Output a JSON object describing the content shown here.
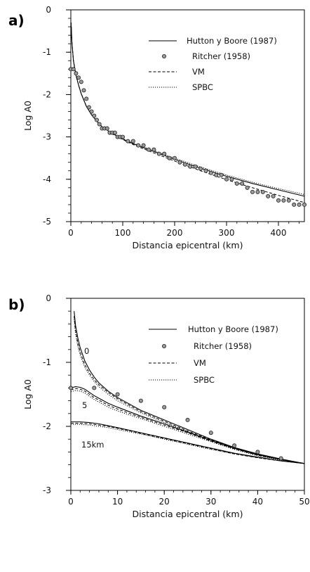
{
  "chart_data": [
    {
      "panel_label": "a)",
      "type": "line",
      "xlabel": "Distancia epicentral (km)",
      "ylabel": "Log A0",
      "xlim": [
        0,
        450
      ],
      "ylim": [
        -5,
        0
      ],
      "xticks": [
        "0",
        "100",
        "200",
        "300",
        "400"
      ],
      "yticks": [
        "0",
        "-1",
        "-2",
        "-3",
        "-4",
        "-5"
      ],
      "legend": {
        "placement": "top-right",
        "entries": [
          "Hutton y Boore (1987)",
          "Ritcher (1958)",
          "VM",
          "SPBC"
        ]
      },
      "series": [
        {
          "name": "Hutton y Boore (1987)",
          "style": "solid",
          "x": [
            0.5,
            2,
            5,
            10,
            15,
            20,
            30,
            40,
            50,
            60,
            80,
            100,
            120,
            150,
            200,
            250,
            300,
            350,
            400,
            450
          ],
          "y": [
            -0.3,
            -0.75,
            -1.2,
            -1.55,
            -1.78,
            -1.98,
            -2.28,
            -2.48,
            -2.63,
            -2.76,
            -2.92,
            -3.05,
            -3.16,
            -3.3,
            -3.53,
            -3.74,
            -3.93,
            -4.1,
            -4.25,
            -4.4
          ]
        },
        {
          "name": "VM",
          "style": "dashed",
          "x": [
            0.5,
            2,
            5,
            10,
            15,
            20,
            30,
            40,
            50,
            60,
            80,
            100,
            120,
            150,
            200,
            250,
            300,
            350,
            400,
            450
          ],
          "y": [
            -0.3,
            -0.75,
            -1.2,
            -1.55,
            -1.78,
            -1.98,
            -2.28,
            -2.48,
            -2.63,
            -2.76,
            -2.93,
            -3.06,
            -3.18,
            -3.33,
            -3.57,
            -3.8,
            -4.01,
            -4.2,
            -4.38,
            -4.55
          ]
        },
        {
          "name": "SPBC",
          "style": "dotted",
          "x": [
            0.5,
            2,
            5,
            10,
            15,
            20,
            30,
            40,
            50,
            60,
            80,
            100,
            120,
            150,
            200,
            250,
            300,
            350,
            400,
            450
          ],
          "y": [
            -0.3,
            -0.75,
            -1.2,
            -1.55,
            -1.78,
            -1.98,
            -2.28,
            -2.48,
            -2.63,
            -2.76,
            -2.92,
            -3.04,
            -3.15,
            -3.28,
            -3.5,
            -3.71,
            -3.9,
            -4.07,
            -4.22,
            -4.36
          ]
        },
        {
          "name": "Ritcher (1958)",
          "style": "points",
          "x": [
            0,
            5,
            10,
            15,
            20,
            25,
            30,
            35,
            40,
            45,
            50,
            55,
            60,
            65,
            70,
            75,
            80,
            85,
            90,
            95,
            100,
            110,
            120,
            130,
            140,
            150,
            160,
            170,
            180,
            190,
            200,
            210,
            220,
            230,
            240,
            250,
            260,
            270,
            280,
            290,
            300,
            310,
            320,
            330,
            340,
            350,
            360,
            370,
            380,
            390,
            400,
            410,
            420,
            430,
            440,
            450
          ],
          "y": [
            -1.4,
            -1.4,
            -1.5,
            -1.6,
            -1.7,
            -1.9,
            -2.1,
            -2.3,
            -2.4,
            -2.5,
            -2.6,
            -2.7,
            -2.8,
            -2.8,
            -2.8,
            -2.9,
            -2.9,
            -2.9,
            -3.0,
            -3.0,
            -3.0,
            -3.1,
            -3.1,
            -3.2,
            -3.2,
            -3.3,
            -3.3,
            -3.4,
            -3.4,
            -3.5,
            -3.5,
            -3.6,
            -3.65,
            -3.7,
            -3.7,
            -3.75,
            -3.8,
            -3.85,
            -3.9,
            -3.9,
            -4.0,
            -4.0,
            -4.1,
            -4.1,
            -4.2,
            -4.3,
            -4.3,
            -4.3,
            -4.4,
            -4.4,
            -4.5,
            -4.5,
            -4.5,
            -4.6,
            -4.6,
            -4.6
          ]
        }
      ]
    },
    {
      "panel_label": "b)",
      "type": "line",
      "xlabel": "Distancia epicentral (km)",
      "ylabel": "Log A0",
      "xlim": [
        0,
        50
      ],
      "ylim": [
        -3,
        0
      ],
      "xticks": [
        "0",
        "10",
        "20",
        "30",
        "40",
        "50"
      ],
      "yticks": [
        "0",
        "-1",
        "-2",
        "-3"
      ],
      "legend": {
        "placement": "top-right",
        "entries": [
          "Hutton y Boore (1987)",
          "Ritcher (1958)",
          "VM",
          "SPBC"
        ]
      },
      "annotations": [
        "0",
        "5",
        "15km"
      ],
      "series": [
        {
          "name": "Hutton y Boore (1987)",
          "depth": "0",
          "style": "solid",
          "x": [
            0.7,
            1,
            1.5,
            2,
            3,
            4,
            5,
            6,
            8,
            10,
            15,
            20,
            25,
            30,
            35,
            40,
            45,
            50
          ],
          "y": [
            -0.2,
            -0.42,
            -0.62,
            -0.77,
            -0.98,
            -1.12,
            -1.23,
            -1.32,
            -1.45,
            -1.55,
            -1.75,
            -1.9,
            -2.05,
            -2.2,
            -2.33,
            -2.43,
            -2.51,
            -2.58
          ]
        },
        {
          "name": "VM",
          "depth": "0",
          "style": "dashed",
          "x": [
            0.7,
            1,
            1.5,
            2,
            3,
            4,
            5,
            6,
            8,
            10,
            15,
            20,
            25,
            30,
            35,
            40,
            45,
            50
          ],
          "y": [
            -0.28,
            -0.5,
            -0.7,
            -0.84,
            -1.04,
            -1.17,
            -1.27,
            -1.35,
            -1.47,
            -1.57,
            -1.77,
            -1.92,
            -2.07,
            -2.21,
            -2.34,
            -2.44,
            -2.52,
            -2.58
          ]
        },
        {
          "name": "SPBC",
          "depth": "0",
          "style": "dotted",
          "x": [
            0.7,
            1,
            1.5,
            2,
            3,
            4,
            5,
            6,
            8,
            10,
            15,
            20,
            25,
            30,
            35,
            40,
            45,
            50
          ],
          "y": [
            -0.33,
            -0.55,
            -0.75,
            -0.89,
            -1.08,
            -1.2,
            -1.3,
            -1.38,
            -1.5,
            -1.6,
            -1.79,
            -1.94,
            -2.08,
            -2.22,
            -2.35,
            -2.45,
            -2.52,
            -2.58
          ]
        },
        {
          "name": "Hutton y Boore (1987)",
          "depth": "5",
          "style": "solid",
          "x": [
            0,
            1,
            2,
            3,
            4,
            5,
            6,
            8,
            10,
            15,
            20,
            25,
            30,
            35,
            40,
            45,
            50
          ],
          "y": [
            -1.4,
            -1.38,
            -1.39,
            -1.42,
            -1.47,
            -1.52,
            -1.56,
            -1.64,
            -1.7,
            -1.84,
            -1.96,
            -2.09,
            -2.22,
            -2.34,
            -2.44,
            -2.52,
            -2.58
          ]
        },
        {
          "name": "VM",
          "depth": "5",
          "style": "dashed",
          "x": [
            0,
            1,
            2,
            3,
            4,
            5,
            6,
            8,
            10,
            15,
            20,
            25,
            30,
            35,
            40,
            45,
            50
          ],
          "y": [
            -1.43,
            -1.41,
            -1.42,
            -1.45,
            -1.5,
            -1.55,
            -1.59,
            -1.67,
            -1.73,
            -1.86,
            -1.98,
            -2.1,
            -2.23,
            -2.35,
            -2.45,
            -2.52,
            -2.58
          ]
        },
        {
          "name": "SPBC",
          "depth": "5",
          "style": "dotted",
          "x": [
            0,
            1,
            2,
            3,
            4,
            5,
            6,
            8,
            10,
            15,
            20,
            25,
            30,
            35,
            40,
            45,
            50
          ],
          "y": [
            -1.46,
            -1.44,
            -1.45,
            -1.48,
            -1.53,
            -1.58,
            -1.62,
            -1.7,
            -1.76,
            -1.88,
            -2.0,
            -2.12,
            -2.24,
            -2.36,
            -2.46,
            -2.53,
            -2.58
          ]
        },
        {
          "name": "Hutton y Boore (1987)",
          "depth": "15km",
          "style": "solid",
          "x": [
            0,
            2,
            4,
            6,
            8,
            10,
            15,
            20,
            25,
            30,
            35,
            40,
            45,
            50
          ],
          "y": [
            -1.93,
            -1.93,
            -1.94,
            -1.96,
            -1.99,
            -2.02,
            -2.1,
            -2.18,
            -2.26,
            -2.34,
            -2.42,
            -2.48,
            -2.54,
            -2.58
          ]
        },
        {
          "name": "VM",
          "depth": "15km",
          "style": "dashed",
          "x": [
            0,
            2,
            4,
            6,
            8,
            10,
            15,
            20,
            25,
            30,
            35,
            40,
            45,
            50
          ],
          "y": [
            -1.95,
            -1.95,
            -1.96,
            -1.98,
            -2.0,
            -2.03,
            -2.11,
            -2.19,
            -2.27,
            -2.35,
            -2.43,
            -2.49,
            -2.54,
            -2.58
          ]
        },
        {
          "name": "SPBC",
          "depth": "15km",
          "style": "dotted",
          "x": [
            0,
            2,
            4,
            6,
            8,
            10,
            15,
            20,
            25,
            30,
            35,
            40,
            45,
            50
          ],
          "y": [
            -1.97,
            -1.97,
            -1.98,
            -2.0,
            -2.02,
            -2.05,
            -2.12,
            -2.2,
            -2.28,
            -2.36,
            -2.43,
            -2.49,
            -2.54,
            -2.58
          ]
        },
        {
          "name": "Ritcher (1958)",
          "style": "points",
          "x": [
            0,
            5,
            10,
            15,
            20,
            25,
            30,
            35,
            40,
            45
          ],
          "y": [
            -1.4,
            -1.4,
            -1.5,
            -1.6,
            -1.7,
            -1.9,
            -2.1,
            -2.3,
            -2.4,
            -2.5
          ]
        }
      ]
    }
  ]
}
